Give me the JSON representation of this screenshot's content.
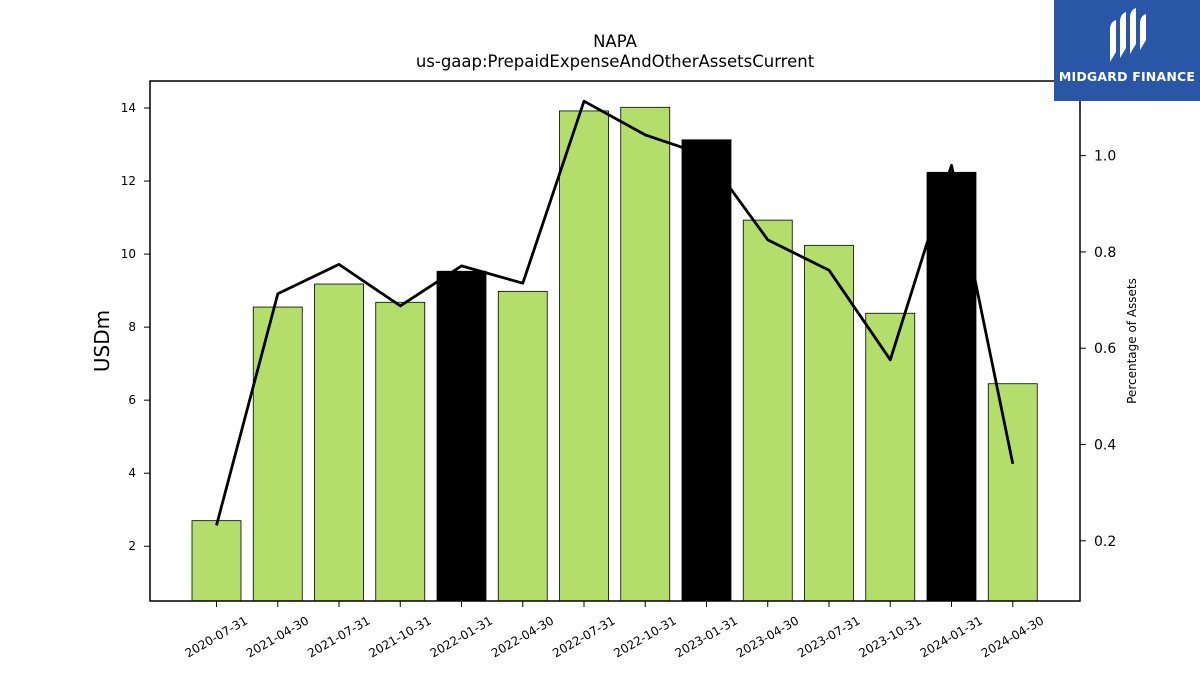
{
  "chart_data": {
    "type": "bar",
    "title": "NAPA",
    "subtitle": "us-gaap:PrepaidExpenseAndOtherAssetsCurrent",
    "categories": [
      "2020-07-31",
      "2021-04-30",
      "2021-07-31",
      "2021-10-31",
      "2022-01-31",
      "2022-04-30",
      "2022-07-31",
      "2022-10-31",
      "2023-01-31",
      "2023-04-30",
      "2023-07-31",
      "2023-10-31",
      "2024-01-31",
      "2024-04-30"
    ],
    "series": [
      {
        "type": "bar",
        "axis": "left",
        "values": [
          2.7,
          8.55,
          9.18,
          8.68,
          9.53,
          8.98,
          13.92,
          14.02,
          13.13,
          10.93,
          10.24,
          8.38,
          12.24,
          6.45
        ],
        "colors": [
          "#b4de6b",
          "#b4de6b",
          "#b4de6b",
          "#b4de6b",
          "#000000",
          "#b4de6b",
          "#b4de6b",
          "#b4de6b",
          "#000000",
          "#b4de6b",
          "#b4de6b",
          "#b4de6b",
          "#000000",
          "#b4de6b"
        ]
      },
      {
        "type": "line",
        "axis": "right",
        "color": "#000000",
        "values": [
          0.232,
          0.713,
          0.774,
          0.688,
          0.771,
          0.735,
          1.113,
          1.043,
          1.0,
          0.825,
          0.762,
          0.576,
          0.98,
          0.36
        ]
      }
    ],
    "ylabel": "USDm",
    "ylabel_right": "Percentage of Assets",
    "ylim": [
      0.5,
      14.74
    ],
    "ylim_right": [
      0.075,
      1.155
    ],
    "yticks": [
      2,
      4,
      6,
      8,
      10,
      12,
      14
    ],
    "yticks_right": [
      0.2,
      0.4,
      0.6,
      0.8,
      1.0
    ],
    "ytick_labels_right": [
      "0.2",
      "0.4",
      "0.6",
      "0.8",
      "1.0"
    ],
    "grid": false,
    "legend": "none"
  },
  "logo": {
    "text": "MIDGARD FINANCE",
    "background": "#2a56a8"
  }
}
